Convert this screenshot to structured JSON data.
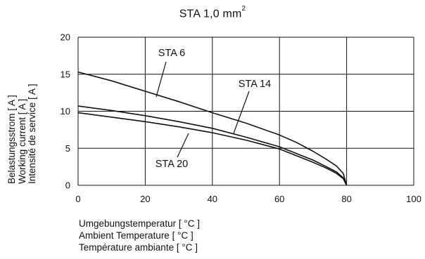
{
  "title_main": "STA   1,0 mm",
  "title_sup": "2",
  "chart_data": {
    "type": "line",
    "title": "STA   1,0 mm²",
    "xlim": [
      0,
      100
    ],
    "ylim": [
      0,
      20
    ],
    "x_ticks": [
      "0",
      "20",
      "40",
      "60",
      "80",
      "100"
    ],
    "y_ticks": [
      "0",
      "5",
      "10",
      "15",
      "20"
    ],
    "grid": true,
    "xlabel_lines": [
      "Umgebungstemperatur [ °C ]",
      "Ambient Temperature [ °C ]",
      "Température ambiante [ °C ]"
    ],
    "ylabel_lines": [
      "Belastungsstrom [ A ]",
      "Working current [ A ]",
      "Intensité de service [ A ]"
    ],
    "series": [
      {
        "name": "STA 6",
        "x": [
          0,
          10,
          20,
          30,
          40,
          50,
          60,
          65,
          70,
          74,
          77,
          79,
          80
        ],
        "y": [
          15.3,
          14.1,
          12.7,
          11.3,
          9.8,
          8.4,
          6.8,
          5.8,
          4.6,
          3.5,
          2.6,
          1.6,
          0
        ]
      },
      {
        "name": "STA 14",
        "x": [
          0,
          10,
          20,
          30,
          40,
          50,
          60,
          65,
          70,
          74,
          77,
          79,
          80
        ],
        "y": [
          10.7,
          10.1,
          9.4,
          8.6,
          7.7,
          6.5,
          5.2,
          4.3,
          3.4,
          2.5,
          1.8,
          1.0,
          0
        ]
      },
      {
        "name": "STA 20",
        "x": [
          0,
          10,
          20,
          30,
          40,
          50,
          60,
          65,
          70,
          74,
          77,
          79,
          80
        ],
        "y": [
          9.8,
          9.2,
          8.6,
          7.9,
          7.1,
          6.1,
          4.9,
          4.0,
          3.1,
          2.3,
          1.6,
          0.9,
          0
        ]
      }
    ],
    "annotations": [
      {
        "text": "STA 6",
        "series": 0
      },
      {
        "text": "STA 14",
        "series": 1
      },
      {
        "text": "STA 20",
        "series": 2
      }
    ]
  }
}
